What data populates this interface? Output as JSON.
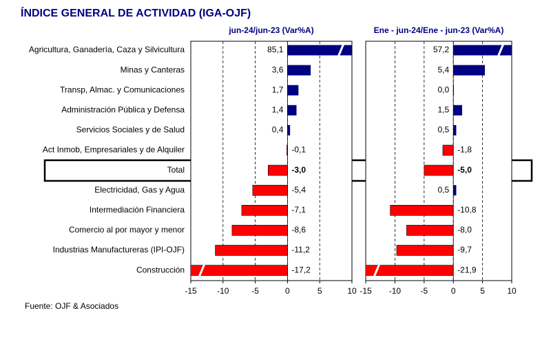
{
  "title": "ÍNDICE GENERAL DE ACTIVIDAD (IGA-OJF)",
  "source": "Fuente: OJF & Asociados",
  "chart_data": [
    {
      "type": "bar",
      "orientation": "horizontal",
      "title": "jun-24/jun-23  (Var%A)",
      "categories": [
        "Agricultura, Ganadería, Caza y Silvicultura",
        "Minas y Canteras",
        "Transp, Almac. y Comunicaciones",
        "Administración Pública y Defensa",
        "Servicios Sociales y de Salud",
        "Act Inmob, Empresariales y de Alquiler",
        "Total",
        "Electricidad, Gas y Agua",
        "Intermediación Financiera",
        "Comercio al por mayor y menor",
        "Industrias Manufactureras (IPI-OJF)",
        "Construcción"
      ],
      "values": [
        85.1,
        3.6,
        1.7,
        1.4,
        0.4,
        -0.1,
        -3.0,
        -5.4,
        -7.1,
        -8.6,
        -11.2,
        -17.2
      ],
      "value_labels": [
        "85,1",
        "3,6",
        "1,7",
        "1,4",
        "0,4",
        "-0,1",
        "-3,0",
        "-5,4",
        "-7,1",
        "-8,6",
        "-11,2",
        "-17,2"
      ],
      "positive_color": "#000080",
      "negative_color": "#ff0000",
      "xlim": [
        -15,
        10
      ],
      "xticks": [
        -15,
        -10,
        -5,
        0,
        5,
        10
      ],
      "grid": true
    },
    {
      "type": "bar",
      "orientation": "horizontal",
      "title": "Ene - jun-24/Ene - jun-23  (Var%A)",
      "values": [
        57.2,
        5.4,
        0.0,
        1.5,
        0.5,
        -1.8,
        -5.0,
        0.5,
        -10.8,
        -8.0,
        -9.7,
        -21.9
      ],
      "value_labels": [
        "57,2",
        "5,4",
        "0,0",
        "1,5",
        "0,5",
        "-1,8",
        "-5,0",
        "0,5",
        "-10,8",
        "-8,0",
        "-9,7",
        "-21,9"
      ],
      "positive_color": "#000080",
      "negative_color": "#ff0000",
      "xlim": [
        -15,
        10
      ],
      "xticks": [
        -15,
        -10,
        -5,
        0,
        5,
        10
      ],
      "grid": true
    }
  ]
}
